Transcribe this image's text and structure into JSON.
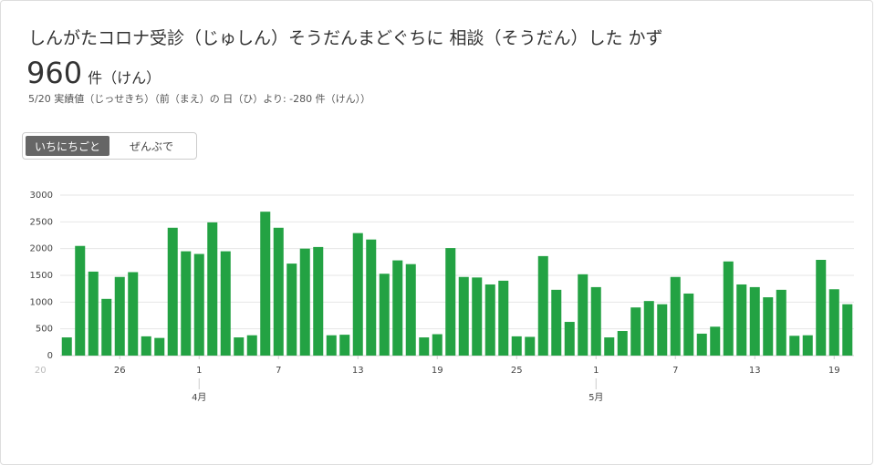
{
  "header": {
    "title": "しんがたコロナ受診（じゅしん）そうだんまどぐちに 相談（そうだん）した かず",
    "big_value": "960",
    "big_unit": "件（けん）",
    "subtitle": "5/20 実績値（じっせきち）（前（まえ）の 日（ひ）より: -280 件（けん））"
  },
  "toggle": {
    "options": [
      "いちにちごと",
      "ぜんぶで"
    ],
    "active": 0
  },
  "chart_data": {
    "type": "bar",
    "color": "#23a243",
    "grid": true,
    "x_first_label": "20",
    "x_month_labels": [
      "4月",
      "5月"
    ],
    "categories": [
      null,
      null,
      null,
      null,
      "26",
      null,
      null,
      null,
      null,
      null,
      "1",
      null,
      null,
      null,
      null,
      null,
      "7",
      null,
      null,
      null,
      null,
      null,
      "13",
      null,
      null,
      null,
      null,
      null,
      "19",
      null,
      null,
      null,
      null,
      null,
      "25",
      null,
      null,
      null,
      null,
      null,
      "1",
      null,
      null,
      null,
      null,
      null,
      "7",
      null,
      null,
      null,
      null,
      null,
      "13",
      null,
      null,
      null,
      null,
      null,
      "19",
      null
    ],
    "values": [
      340,
      2050,
      1570,
      1060,
      1470,
      1560,
      360,
      330,
      2390,
      1950,
      1900,
      2490,
      1950,
      340,
      380,
      2690,
      2390,
      1720,
      2000,
      2030,
      380,
      390,
      2290,
      2170,
      1530,
      1780,
      1710,
      340,
      400,
      2010,
      1470,
      1460,
      1330,
      1400,
      360,
      350,
      1860,
      1230,
      630,
      1520,
      1280,
      340,
      460,
      900,
      1020,
      960,
      1470,
      1160,
      410,
      540,
      1760,
      1330,
      1280,
      1090,
      1230,
      370,
      380,
      1790,
      1240,
      960
    ],
    "ylim": [
      0,
      3000
    ],
    "yticks": [
      0,
      500,
      1000,
      1500,
      2000,
      2500,
      3000
    ]
  }
}
